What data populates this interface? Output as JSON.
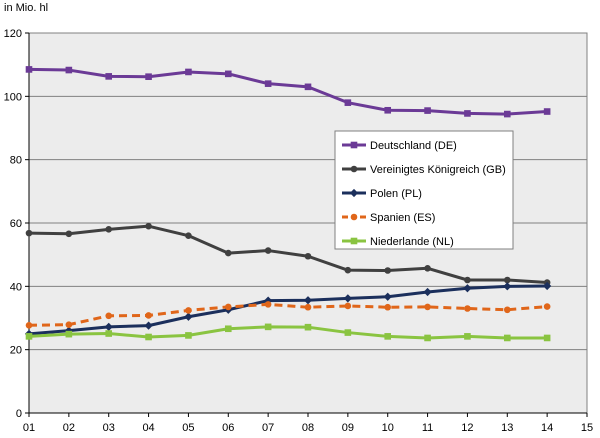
{
  "chart_data": {
    "type": "line",
    "unit_label": "in Mio. hl",
    "x": [
      "01",
      "02",
      "03",
      "04",
      "05",
      "06",
      "07",
      "08",
      "09",
      "10",
      "11",
      "12",
      "13",
      "14"
    ],
    "x_tick_labels": [
      "01",
      "02",
      "03",
      "04",
      "05",
      "06",
      "07",
      "08",
      "09",
      "10",
      "11",
      "12",
      "13",
      "14",
      "15"
    ],
    "xlim": [
      1,
      15
    ],
    "ylim": [
      0,
      120
    ],
    "y_ticks": [
      0,
      20,
      40,
      60,
      80,
      100,
      120
    ],
    "grid": true,
    "legend_position": "right-middle",
    "series": [
      {
        "name": "Deutschland (DE)",
        "color": "#6b3a96",
        "marker": "square",
        "dashed": false,
        "values": [
          108.5,
          108.3,
          106.3,
          106.2,
          107.7,
          107.1,
          104.0,
          103.0,
          98.0,
          95.6,
          95.5,
          94.6,
          94.4,
          95.2
        ]
      },
      {
        "name": "Vereinigtes Königreich (GB)",
        "color": "#404040",
        "marker": "circle",
        "dashed": false,
        "values": [
          56.8,
          56.6,
          58.0,
          59.0,
          56.0,
          50.5,
          51.3,
          49.5,
          45.1,
          45.0,
          45.7,
          42.0,
          42.0,
          41.2
        ]
      },
      {
        "name": "Polen (PL)",
        "color": "#1b2f5c",
        "marker": "diamond",
        "dashed": false,
        "values": [
          25.0,
          26.0,
          27.2,
          27.6,
          30.4,
          32.6,
          35.5,
          35.6,
          36.2,
          36.7,
          38.2,
          39.4,
          40.0,
          40.1
        ]
      },
      {
        "name": "Spanien (ES)",
        "color": "#e0661a",
        "marker": "circle",
        "dashed": true,
        "values": [
          27.7,
          27.9,
          30.7,
          30.8,
          32.4,
          33.5,
          34.3,
          33.4,
          33.8,
          33.4,
          33.5,
          33.0,
          32.6,
          33.6
        ]
      },
      {
        "name": "Niederlande (NL)",
        "color": "#8ac441",
        "marker": "square",
        "dashed": false,
        "values": [
          24.2,
          24.9,
          25.1,
          24.0,
          24.5,
          26.6,
          27.2,
          27.1,
          25.4,
          24.2,
          23.7,
          24.2,
          23.7,
          23.7
        ]
      }
    ]
  }
}
